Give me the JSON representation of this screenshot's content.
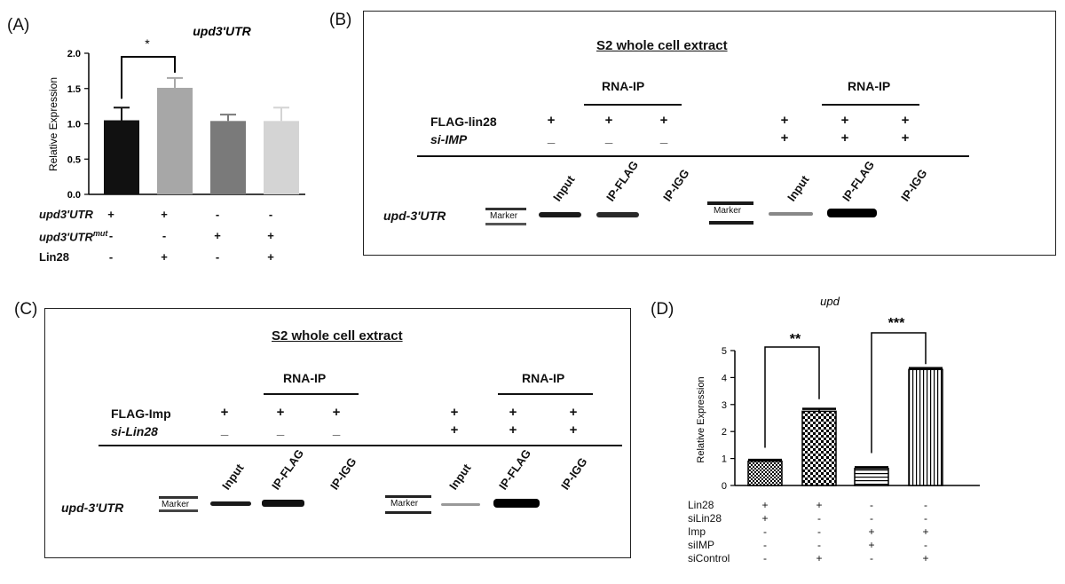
{
  "panel_a": {
    "label": "(A)",
    "title": "upd3'UTR",
    "ylabel": "Relative Expression",
    "star": "*",
    "yticks": [
      "0.0",
      "0.5",
      "1.0",
      "1.5",
      "2.0"
    ],
    "rows": [
      {
        "label": "upd3'UTR",
        "marks": [
          "+",
          "+",
          "-",
          "-"
        ]
      },
      {
        "label": "upd3'UTR",
        "sup": "mut",
        "marks": [
          "-",
          "-",
          "+",
          "+"
        ]
      },
      {
        "label": "Lin28",
        "marks": [
          "-",
          "+",
          "-",
          "+"
        ]
      }
    ]
  },
  "panel_b": {
    "label": "(B)",
    "title": "S2 whole cell extract",
    "rnaip": "RNA-IP",
    "row1": "FLAG-lin28",
    "row2": "si-IMP",
    "row1_marks": [
      "+",
      "+",
      "+",
      "+",
      "+",
      "+"
    ],
    "row2_marks": [
      "_",
      "_",
      "_",
      "+",
      "+",
      "+"
    ],
    "lanes": [
      "Input",
      "IP-FLAG",
      "IP-IGG",
      "Input",
      "IP-FLAG",
      "IP-IGG"
    ],
    "marker": "Marker",
    "gene": "upd-3'UTR"
  },
  "panel_c": {
    "label": "(C)",
    "title": "S2 whole cell extract",
    "rnaip": "RNA-IP",
    "row1": "FLAG-Imp",
    "row2": "si-Lin28",
    "row1_marks": [
      "+",
      "+",
      "+",
      "+",
      "+",
      "+"
    ],
    "row2_marks": [
      "_",
      "_",
      "_",
      "+",
      "+",
      "+"
    ],
    "lanes": [
      "Input",
      "IP-FLAG",
      "IP-IGG",
      "Input",
      "IP-FLAG",
      "IP-IGG"
    ],
    "marker": "Marker",
    "gene": "upd-3'UTR"
  },
  "panel_d": {
    "label": "(D)",
    "title": "upd",
    "ylabel": "Relative Expression",
    "star1": "**",
    "star2": "***",
    "yticks": [
      "0",
      "1",
      "2",
      "3",
      "4",
      "5"
    ],
    "rows": [
      {
        "label": "Lin28",
        "marks": [
          "+",
          "+",
          "-",
          "-"
        ]
      },
      {
        "label": "siLin28",
        "marks": [
          "+",
          "-",
          "-",
          "-"
        ]
      },
      {
        "label": "Imp",
        "marks": [
          "-",
          "-",
          "+",
          "+"
        ]
      },
      {
        "label": "siIMP",
        "marks": [
          "-",
          "-",
          "+",
          "-"
        ]
      },
      {
        "label": "siControl",
        "marks": [
          "-",
          "+",
          "-",
          "+"
        ]
      }
    ]
  },
  "chart_data": [
    {
      "type": "bar",
      "title": "upd3'UTR",
      "ylabel": "Relative Expression",
      "ylim": [
        0,
        2.0
      ],
      "values": [
        1.05,
        1.51,
        1.04,
        1.04
      ],
      "errors": [
        0.18,
        0.14,
        0.09,
        0.19
      ],
      "colors": [
        "#111111",
        "#a7a7a7",
        "#7a7a7a",
        "#d4d4d4"
      ]
    },
    {
      "type": "bar",
      "title": "upd",
      "ylabel": "Relative Expression",
      "ylim": [
        0,
        5
      ],
      "values": [
        0.9,
        2.75,
        0.63,
        4.3
      ],
      "errors": [
        0.05,
        0.09,
        0.05,
        0.05
      ],
      "patterns": [
        "dots",
        "checker",
        "hlines",
        "vlines"
      ]
    }
  ]
}
